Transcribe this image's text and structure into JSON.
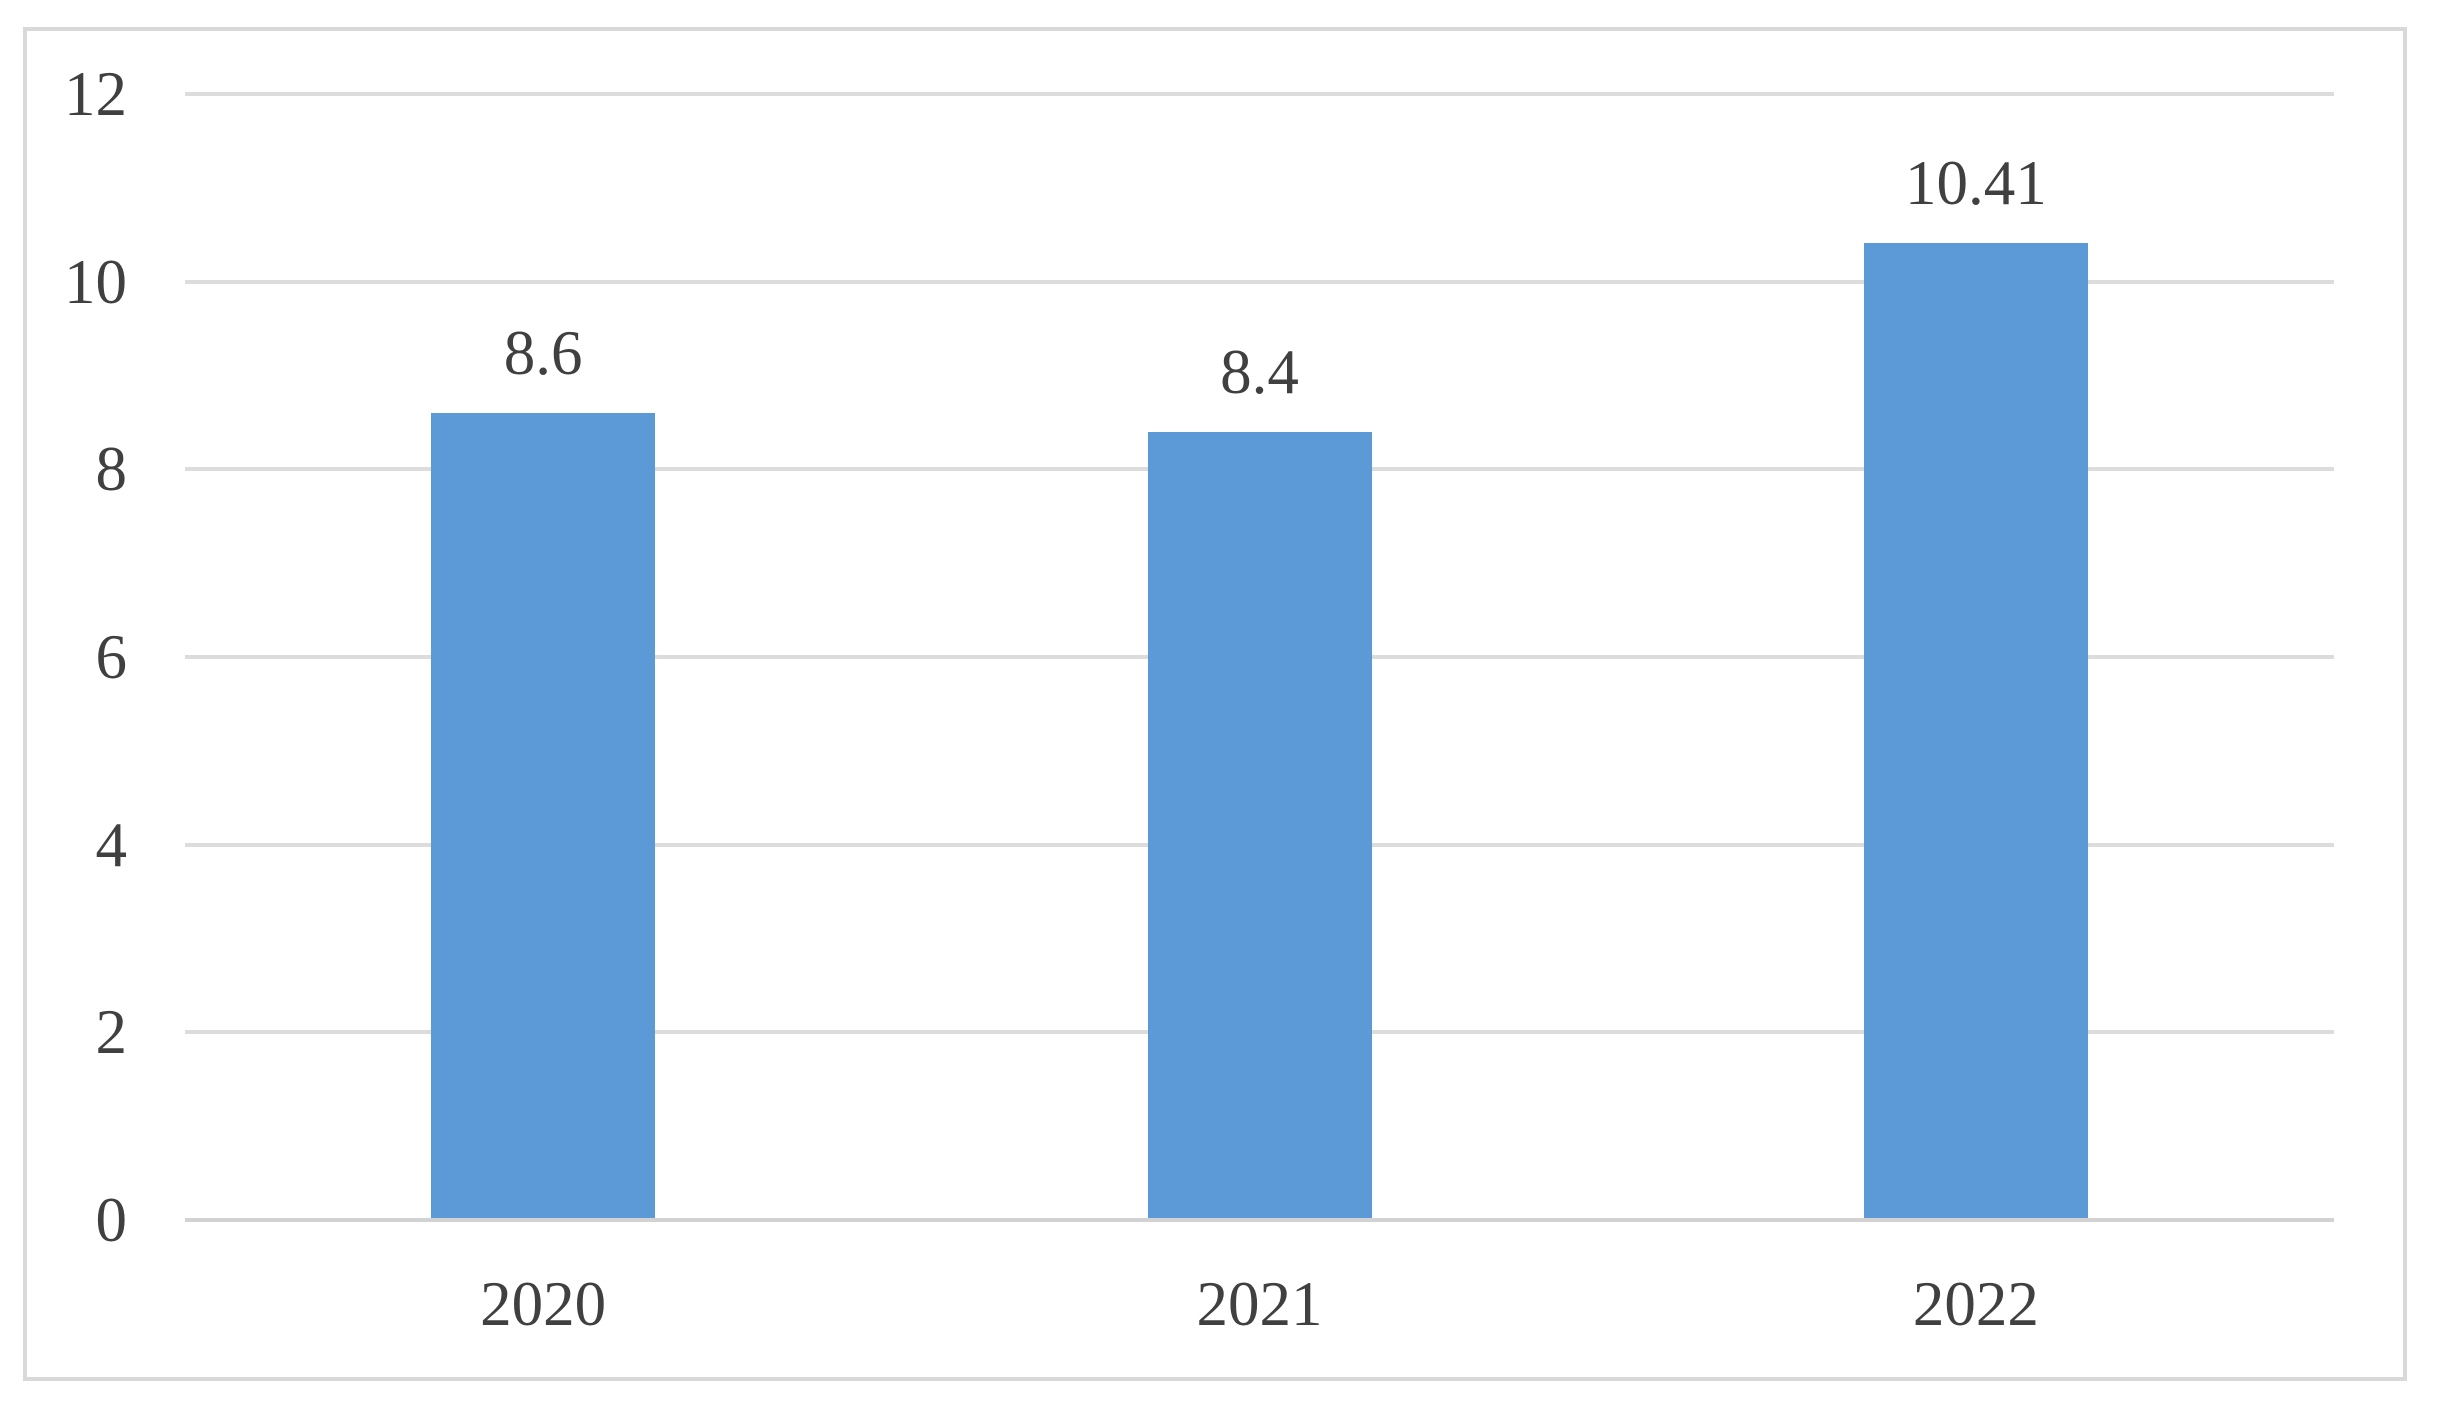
{
  "chart_data": {
    "type": "bar",
    "title": "",
    "categories": [
      "2020",
      "2021",
      "2022"
    ],
    "values": [
      8.6,
      8.4,
      10.41
    ],
    "data_labels": [
      "8.6",
      "8.4",
      "10.41"
    ],
    "xlabel": "",
    "ylabel": "",
    "ylim": [
      0,
      12
    ],
    "yticks": [
      0,
      2,
      4,
      6,
      8,
      10,
      12
    ],
    "ytick_labels": [
      "0",
      "2",
      "4",
      "6",
      "8",
      "10",
      "12"
    ],
    "grid": true,
    "legend": false,
    "colors": {
      "bar": "#5b9ad6",
      "gridline": "#dcdcdc",
      "axis_line": "#d2d2d2",
      "frame_border": "#d9d9d9",
      "label_text": "#404040",
      "background": "#ffffff"
    }
  }
}
